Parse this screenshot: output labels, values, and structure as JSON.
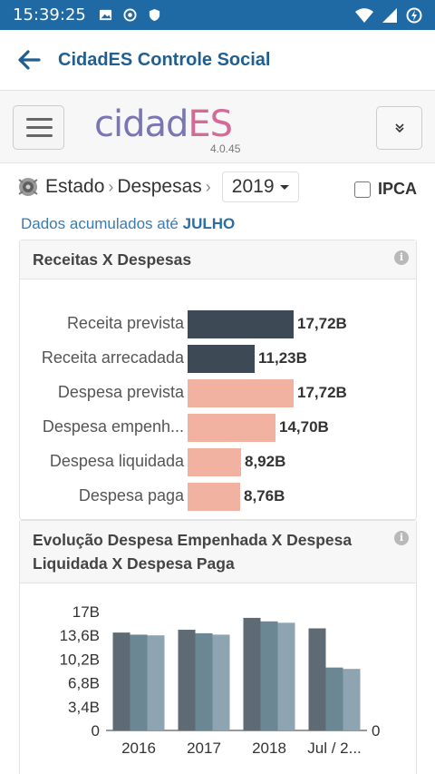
{
  "status_bar": {
    "time": "15:39:25",
    "icons": [
      "image-icon",
      "record-icon",
      "shield-icon",
      "wifi-icon",
      "signal-icon",
      "battery-icon"
    ]
  },
  "app_bar": {
    "title": "CidadES Controle Social",
    "back_icon": "arrow-left-icon"
  },
  "toolbar": {
    "logo_text_1": "cidad",
    "logo_text_2": "ES",
    "version": "4.0.45",
    "menu_icon": "hamburger-icon",
    "collapse_icon": "chevron-double-down-icon"
  },
  "breadcrumb": {
    "level1": "Estado",
    "level2": "Despesas",
    "year": "2019",
    "ipca_label": "IPCA",
    "ipca_checked": false
  },
  "accum": {
    "prefix": "Dados acumulados até ",
    "month": "JULHO"
  },
  "colors": {
    "dark": "#3d4a55",
    "salmon": "#f2b2a2",
    "blue": "#1f6aa5",
    "bar_a": "#5f6b74",
    "bar_b": "#6c8794",
    "bar_c": "#8ea4b0"
  },
  "panel1": {
    "title": "Receitas X Despesas",
    "chart_data": {
      "type": "bar",
      "orientation": "horizontal",
      "categories": [
        "Receita prevista",
        "Receita arrecadada",
        "Despesa prevista",
        "Despesa empenh...",
        "Despesa liquidada",
        "Despesa paga"
      ],
      "values": [
        17.72,
        11.23,
        17.72,
        14.7,
        8.92,
        8.76
      ],
      "value_labels": [
        "17,72B",
        "11,23B",
        "17,72B",
        "14,70B",
        "8,92B",
        "8,76B"
      ],
      "colors": [
        "#3d4a55",
        "#3d4a55",
        "#f2b2a2",
        "#f2b2a2",
        "#f2b2a2",
        "#f2b2a2"
      ]
    }
  },
  "panel2": {
    "title_line1": "Evolução Despesa Empenhada X Despesa",
    "title_line2": "Liquidada X Despesa Paga",
    "chart_data": {
      "type": "bar",
      "categories": [
        "2016",
        "2017",
        "2018",
        "Jul / 2..."
      ],
      "series": [
        {
          "values": [
            14.0,
            14.4,
            16.1,
            14.6
          ]
        },
        {
          "values": [
            13.7,
            13.9,
            15.6,
            9.0
          ]
        },
        {
          "values": [
            13.6,
            13.7,
            15.4,
            8.8
          ]
        }
      ],
      "ylim": [
        0,
        17
      ],
      "y_ticks": [
        "17B",
        "13,6B",
        "10,2B",
        "6,8B",
        "3,4B",
        "0"
      ],
      "y2_ticks": [
        "0"
      ]
    }
  }
}
